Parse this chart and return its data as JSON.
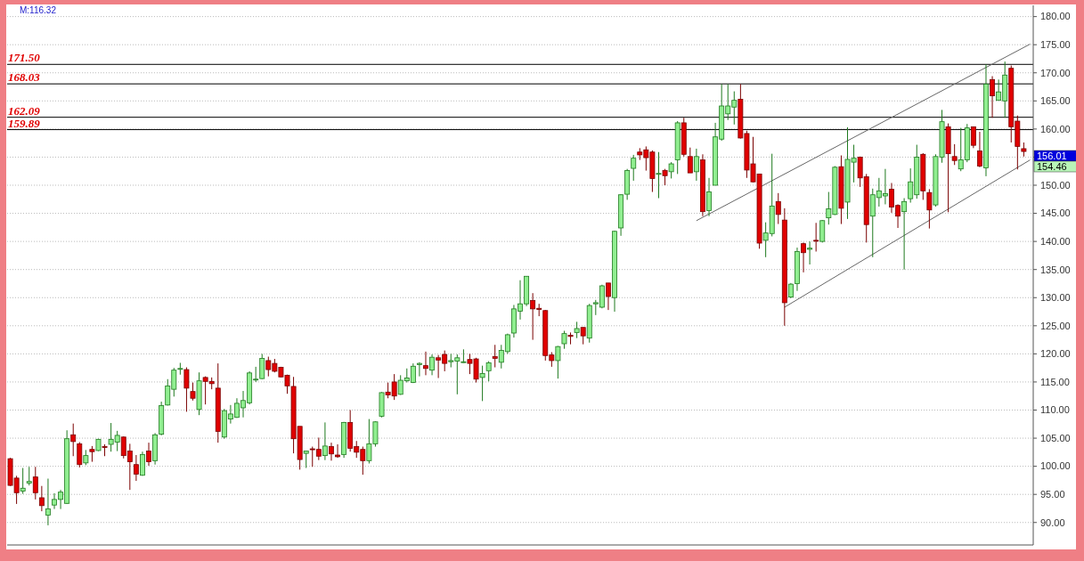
{
  "chart_data": {
    "type": "candlestick",
    "categories": [
      null,
      null,
      null,
      null,
      null,
      null,
      null,
      null,
      null,
      null,
      null,
      null,
      null,
      null,
      null,
      null,
      null,
      null,
      null,
      null,
      null,
      null,
      null,
      null,
      null,
      null,
      null,
      null,
      null,
      null,
      null,
      null,
      null,
      null,
      null,
      null,
      null,
      null,
      null,
      null,
      null,
      null,
      null,
      null,
      null,
      null,
      null,
      null,
      null,
      null,
      null,
      null,
      null,
      null,
      null,
      null,
      null,
      null,
      null,
      null,
      null,
      null,
      null,
      null,
      null,
      null,
      null,
      null,
      null,
      null,
      null,
      null,
      null,
      null,
      null,
      null,
      null,
      null,
      null,
      null,
      null,
      null,
      null,
      null,
      null,
      null,
      null,
      null,
      null,
      null,
      null,
      null,
      null,
      null,
      null,
      null,
      null,
      null,
      null,
      null,
      null,
      null,
      null,
      null,
      null,
      null,
      null,
      null,
      null,
      null,
      null,
      null,
      null,
      null,
      null,
      null,
      null,
      null,
      null,
      null,
      null,
      null,
      null,
      null,
      null,
      null,
      null,
      null,
      null,
      null,
      null,
      null,
      null,
      null,
      null,
      null,
      null,
      null,
      null,
      null,
      null,
      null,
      null,
      null,
      null,
      null,
      null,
      null,
      null,
      null,
      null,
      null,
      null,
      null,
      null,
      null,
      null,
      null,
      null,
      null,
      null,
      null,
      null
    ],
    "ohlc": [
      [
        101.35,
        101.5,
        96.5,
        96.6
      ],
      [
        97.9,
        98.3,
        93.3,
        95.3
      ],
      [
        95.6,
        99.7,
        95.1,
        96.1
      ],
      [
        97.0,
        99.9,
        96.6,
        97.3
      ],
      [
        98.1,
        99.9,
        94.1,
        95.3
      ],
      [
        94.4,
        96.5,
        92.0,
        93.0
      ],
      [
        91.3,
        97.8,
        89.5,
        92.4
      ],
      [
        93.1,
        95.2,
        92.4,
        94.1
      ],
      [
        94.1,
        95.8,
        92.4,
        95.4
      ],
      [
        93.4,
        106.4,
        93.3,
        104.9
      ],
      [
        105.6,
        107.6,
        101.8,
        104.4
      ],
      [
        104.0,
        104.3,
        99.8,
        100.3
      ],
      [
        100.6,
        102.9,
        100.2,
        101.9
      ],
      [
        103.0,
        103.6,
        100.8,
        102.6
      ],
      [
        102.8,
        104.9,
        102.7,
        104.8
      ],
      [
        103.5,
        103.9,
        101.8,
        103.4
      ],
      [
        103.9,
        107.7,
        102.6,
        104.8
      ],
      [
        104.3,
        106.3,
        102.7,
        105.5
      ],
      [
        105.2,
        105.3,
        101.4,
        101.9
      ],
      [
        102.7,
        104.0,
        95.8,
        100.8
      ],
      [
        100.3,
        102.0,
        97.4,
        98.6
      ],
      [
        98.4,
        102.6,
        98.3,
        102.1
      ],
      [
        102.7,
        104.2,
        100.1,
        100.8
      ],
      [
        101.0,
        105.9,
        100.3,
        105.6
      ],
      [
        105.7,
        111.5,
        105.5,
        110.8
      ],
      [
        110.9,
        115.5,
        110.8,
        114.3
      ],
      [
        113.7,
        117.5,
        112.4,
        117.1
      ],
      [
        117.3,
        118.4,
        116.3,
        117.4
      ],
      [
        117.2,
        117.6,
        109.7,
        113.9
      ],
      [
        113.3,
        114.9,
        111.7,
        112.1
      ],
      [
        110.1,
        116.7,
        109.1,
        115.2
      ],
      [
        115.8,
        116.0,
        111.0,
        115.1
      ],
      [
        115.1,
        115.8,
        113.7,
        114.7
      ],
      [
        113.9,
        118.3,
        104.2,
        106.2
      ],
      [
        105.2,
        110.2,
        104.9,
        109.9
      ],
      [
        108.4,
        110.9,
        107.6,
        109.3
      ],
      [
        108.7,
        112.1,
        108.6,
        111.2
      ],
      [
        110.4,
        113.4,
        108.7,
        111.7
      ],
      [
        111.3,
        116.9,
        111.0,
        116.6
      ],
      [
        115.4,
        117.7,
        115.0,
        115.5
      ],
      [
        115.6,
        120.0,
        115.5,
        119.2
      ],
      [
        118.8,
        119.5,
        116.0,
        117.2
      ],
      [
        118.3,
        119.1,
        116.7,
        116.9
      ],
      [
        117.6,
        117.7,
        115.8,
        115.9
      ],
      [
        116.2,
        116.3,
        112.9,
        114.3
      ],
      [
        114.2,
        115.9,
        102.3,
        104.9
      ],
      [
        107.1,
        107.1,
        99.4,
        101.2
      ],
      [
        102.3,
        102.7,
        99.7,
        102.7
      ],
      [
        103.1,
        103.5,
        99.9,
        103.0
      ],
      [
        103.0,
        105.1,
        101.1,
        101.8
      ],
      [
        101.9,
        107.8,
        101.1,
        103.6
      ],
      [
        103.5,
        104.2,
        101.0,
        102.2
      ],
      [
        102.0,
        103.9,
        101.5,
        101.7
      ],
      [
        102.1,
        107.9,
        101.5,
        107.8
      ],
      [
        107.8,
        110.0,
        102.6,
        103.2
      ],
      [
        103.5,
        104.5,
        101.5,
        102.5
      ],
      [
        103.0,
        103.5,
        98.5,
        101.0
      ],
      [
        101.0,
        108.4,
        100.5,
        104.0
      ],
      [
        104.0,
        108.0,
        103.5,
        107.9
      ],
      [
        108.9,
        113.2,
        108.7,
        113.1
      ],
      [
        113.2,
        114.9,
        112.1,
        112.7
      ],
      [
        115.0,
        116.4,
        111.8,
        112.5
      ],
      [
        112.8,
        116.2,
        112.7,
        115.3
      ],
      [
        115.2,
        117.4,
        114.9,
        115.7
      ],
      [
        114.9,
        118.3,
        114.8,
        117.8
      ],
      [
        118.1,
        118.5,
        116.0,
        118.3
      ],
      [
        117.9,
        120.4,
        116.2,
        117.4
      ],
      [
        117.1,
        119.9,
        116.2,
        119.4
      ],
      [
        119.3,
        119.8,
        115.7,
        118.9
      ],
      [
        119.9,
        120.6,
        116.9,
        118.3
      ],
      [
        118.6,
        120.0,
        117.6,
        118.8
      ],
      [
        118.7,
        119.9,
        112.8,
        119.3
      ],
      [
        118.5,
        120.8,
        118.4,
        118.6
      ],
      [
        119.0,
        120.0,
        116.4,
        118.3
      ],
      [
        119.1,
        119.3,
        114.9,
        115.5
      ],
      [
        115.8,
        117.9,
        111.6,
        116.5
      ],
      [
        117.0,
        118.7,
        115.1,
        118.4
      ],
      [
        119.5,
        121.6,
        117.6,
        119.2
      ],
      [
        118.5,
        121.6,
        117.4,
        120.6
      ],
      [
        120.4,
        123.6,
        120.0,
        123.4
      ],
      [
        123.7,
        128.7,
        122.9,
        128.0
      ],
      [
        127.6,
        133.1,
        126.1,
        128.9
      ],
      [
        128.9,
        133.8,
        128.5,
        133.8
      ],
      [
        129.5,
        130.8,
        122.5,
        128.0
      ],
      [
        128.1,
        128.9,
        126.7,
        127.9
      ],
      [
        127.7,
        127.8,
        118.8,
        119.7
      ],
      [
        119.8,
        120.3,
        117.7,
        118.8
      ],
      [
        118.8,
        121.4,
        115.6,
        121.3
      ],
      [
        121.8,
        124.1,
        120.9,
        123.6
      ],
      [
        123.3,
        123.8,
        121.7,
        123.1
      ],
      [
        123.8,
        125.7,
        122.8,
        124.5
      ],
      [
        124.7,
        124.7,
        121.7,
        123.2
      ],
      [
        122.8,
        128.9,
        122.0,
        128.6
      ],
      [
        128.9,
        129.6,
        126.9,
        129.1
      ],
      [
        128.3,
        132.3,
        128.1,
        132.1
      ],
      [
        132.6,
        132.6,
        127.8,
        130.2
      ],
      [
        130.0,
        141.9,
        127.5,
        141.8
      ],
      [
        142.4,
        148.4,
        141.0,
        148.3
      ],
      [
        148.4,
        152.9,
        147.4,
        152.6
      ],
      [
        153.0,
        155.4,
        150.8,
        154.8
      ],
      [
        155.9,
        156.6,
        154.5,
        155.4
      ],
      [
        156.3,
        156.9,
        152.6,
        154.9
      ],
      [
        155.9,
        156.2,
        148.8,
        151.2
      ],
      [
        152.0,
        155.9,
        147.7,
        152.1
      ],
      [
        152.6,
        152.9,
        150.0,
        151.7
      ],
      [
        152.4,
        154.1,
        151.2,
        153.8
      ],
      [
        154.5,
        161.4,
        152.0,
        161.1
      ],
      [
        161.1,
        162.0,
        155.1,
        155.5
      ],
      [
        155.1,
        156.7,
        152.2,
        152.2
      ],
      [
        152.4,
        156.5,
        150.8,
        155.1
      ],
      [
        154.5,
        155.5,
        144.5,
        145.3
      ],
      [
        145.5,
        151.3,
        144.5,
        148.8
      ],
      [
        150.0,
        161.1,
        150.0,
        158.6
      ],
      [
        158.2,
        168.0,
        157.9,
        164.1
      ],
      [
        162.7,
        168.0,
        161.6,
        164.1
      ],
      [
        163.9,
        166.7,
        160.8,
        165.1
      ],
      [
        165.3,
        168.0,
        158.3,
        158.4
      ],
      [
        159.2,
        159.7,
        151.3,
        152.7
      ],
      [
        153.8,
        158.6,
        150.5,
        150.6
      ],
      [
        152.0,
        152.0,
        138.7,
        139.7
      ],
      [
        140.2,
        143.4,
        137.2,
        141.5
      ],
      [
        141.4,
        155.6,
        140.9,
        146.3
      ],
      [
        147.1,
        148.6,
        143.1,
        144.8
      ],
      [
        143.8,
        145.9,
        125.0,
        129.1
      ],
      [
        130.1,
        132.6,
        129.9,
        132.4
      ],
      [
        132.5,
        138.9,
        131.2,
        138.2
      ],
      [
        139.6,
        139.8,
        134.5,
        138.0
      ],
      [
        138.6,
        140.0,
        135.9,
        138.8
      ],
      [
        140.2,
        143.3,
        138.2,
        140.1
      ],
      [
        140.0,
        143.8,
        139.8,
        143.7
      ],
      [
        144.2,
        148.8,
        143.0,
        145.8
      ],
      [
        144.8,
        153.4,
        144.7,
        153.2
      ],
      [
        153.3,
        155.3,
        143.1,
        145.9
      ],
      [
        147.0,
        160.3,
        144.0,
        154.6
      ],
      [
        154.1,
        157.2,
        150.5,
        154.8
      ],
      [
        155.0,
        155.1,
        149.7,
        151.3
      ],
      [
        151.5,
        152.0,
        139.8,
        143.0
      ],
      [
        144.5,
        149.4,
        137.2,
        148.3
      ],
      [
        147.8,
        151.3,
        146.2,
        149.0
      ],
      [
        148.1,
        152.9,
        146.6,
        148.5
      ],
      [
        149.3,
        150.4,
        145.1,
        146.1
      ],
      [
        146.4,
        146.6,
        142.4,
        144.5
      ],
      [
        145.3,
        147.7,
        135.0,
        147.1
      ],
      [
        147.6,
        153.0,
        146.9,
        150.6
      ],
      [
        148.3,
        157.2,
        147.6,
        155.0
      ],
      [
        155.5,
        155.7,
        147.4,
        149.0
      ],
      [
        148.7,
        149.3,
        142.3,
        145.6
      ],
      [
        146.5,
        155.5,
        146.2,
        155.1
      ],
      [
        155.0,
        163.4,
        154.0,
        161.3
      ],
      [
        160.4,
        161.0,
        145.2,
        155.6
      ],
      [
        155.1,
        157.3,
        153.6,
        154.4
      ],
      [
        152.9,
        160.2,
        152.5,
        154.5
      ],
      [
        154.5,
        160.9,
        154.1,
        160.2
      ],
      [
        160.4,
        160.4,
        156.6,
        157.1
      ],
      [
        156.1,
        159.5,
        153.2,
        153.4
      ],
      [
        153.1,
        171.5,
        151.6,
        168.0
      ],
      [
        168.8,
        169.4,
        162.0,
        165.9
      ],
      [
        165.1,
        168.8,
        165.1,
        166.6
      ],
      [
        165.0,
        172.0,
        162.0,
        169.6
      ],
      [
        170.8,
        171.3,
        157.6,
        160.4
      ],
      [
        161.4,
        162.4,
        152.8,
        156.9
      ],
      [
        156.5,
        157.6,
        155.1,
        156.01
      ],
      null
    ],
    "series": [
      {
        "type": "line",
        "color": "#666666",
        "values": [
          null,
          null,
          null,
          null,
          null,
          null,
          null,
          null,
          null,
          null,
          null,
          null,
          null,
          null,
          null,
          null,
          null,
          null,
          null,
          null,
          null,
          null,
          null,
          null,
          null,
          null,
          null,
          null,
          null,
          null,
          null,
          null,
          null,
          null,
          null,
          null,
          null,
          null,
          null,
          null,
          null,
          null,
          null,
          null,
          null,
          null,
          null,
          null,
          null,
          null,
          null,
          null,
          null,
          null,
          null,
          null,
          null,
          null,
          null,
          null,
          null,
          null,
          null,
          null,
          null,
          null,
          null,
          null,
          null,
          null,
          null,
          null,
          null,
          null,
          null,
          null,
          null,
          null,
          null,
          null,
          null,
          null,
          null,
          null,
          null,
          null,
          null,
          null,
          null,
          null,
          null,
          null,
          null,
          null,
          null,
          null,
          null,
          null,
          null,
          null,
          null,
          null,
          null,
          null,
          null,
          null,
          null,
          null,
          null,
          143.7,
          null,
          null,
          null,
          null,
          null,
          null,
          null,
          null,
          null,
          null,
          null,
          null,
          null,
          null,
          null,
          null,
          null,
          null,
          null,
          null,
          null,
          null,
          null,
          null,
          null,
          null,
          null,
          null,
          null,
          null,
          null,
          null,
          null,
          null,
          null,
          null,
          null,
          null,
          null,
          null,
          null,
          null,
          null,
          null,
          null,
          null,
          null,
          null,
          null,
          null,
          null,
          null,
          175.1
        ]
      },
      {
        "type": "line",
        "color": "#666666",
        "values": [
          null,
          null,
          null,
          null,
          null,
          null,
          null,
          null,
          null,
          null,
          null,
          null,
          null,
          null,
          null,
          null,
          null,
          null,
          null,
          null,
          null,
          null,
          null,
          null,
          null,
          null,
          null,
          null,
          null,
          null,
          null,
          null,
          null,
          null,
          null,
          null,
          null,
          null,
          null,
          null,
          null,
          null,
          null,
          null,
          null,
          null,
          null,
          null,
          null,
          null,
          null,
          null,
          null,
          null,
          null,
          null,
          null,
          null,
          null,
          null,
          null,
          null,
          null,
          null,
          null,
          null,
          null,
          null,
          null,
          null,
          null,
          null,
          null,
          null,
          null,
          null,
          null,
          null,
          null,
          null,
          null,
          null,
          null,
          null,
          null,
          null,
          null,
          null,
          null,
          null,
          null,
          null,
          null,
          null,
          null,
          null,
          null,
          null,
          null,
          null,
          null,
          null,
          null,
          null,
          null,
          null,
          null,
          null,
          null,
          null,
          null,
          null,
          null,
          null,
          null,
          null,
          null,
          null,
          null,
          null,
          null,
          null,
          null,
          128.3,
          null,
          null,
          null,
          null,
          null,
          null,
          null,
          null,
          null,
          null,
          null,
          null,
          null,
          null,
          null,
          null,
          null,
          null,
          null,
          null,
          null,
          null,
          null,
          null,
          null,
          null,
          null,
          null,
          null,
          null,
          null,
          null,
          null,
          null,
          null,
          null,
          null,
          null,
          154.5
        ]
      }
    ],
    "ylim": [
      86,
      182
    ],
    "yticks": [
      {
        "value": 90,
        "label": "90.00"
      },
      {
        "value": 95,
        "label": "95.00"
      },
      {
        "value": 100,
        "label": "100.00"
      },
      {
        "value": 105,
        "label": "105.00"
      },
      {
        "value": 110,
        "label": "110.00"
      },
      {
        "value": 115,
        "label": "115.00"
      },
      {
        "value": 120,
        "label": "120.00"
      },
      {
        "value": 125,
        "label": "125.00"
      },
      {
        "value": 130,
        "label": "130.00"
      },
      {
        "value": 135,
        "label": "135.00"
      },
      {
        "value": 140,
        "label": "140.00"
      },
      {
        "value": 145,
        "label": "145.00"
      },
      {
        "value": 150,
        "label": "150.00"
      },
      {
        "value": 155,
        "label": null
      },
      {
        "value": 160,
        "label": "160.00"
      },
      {
        "value": 165,
        "label": "165.00"
      },
      {
        "value": 170,
        "label": "170.00"
      },
      {
        "value": 175,
        "label": "175.00"
      },
      {
        "value": 180,
        "label": "180.00"
      }
    ],
    "ref_lines": [
      {
        "axis": "y",
        "value": 171.5,
        "label": "171.50",
        "color": "#000000"
      },
      {
        "axis": "y",
        "value": 168.03,
        "label": "168.03",
        "color": "#000000"
      },
      {
        "axis": "y",
        "value": 162.09,
        "label": "162.09",
        "color": "#000000"
      },
      {
        "axis": "y",
        "value": 159.89,
        "label": "159.89",
        "color": "#000000"
      }
    ],
    "annotations": [
      "M:116.32",
      "156.01",
      "154.46"
    ],
    "grid": "y",
    "tick_labels": "y"
  }
}
